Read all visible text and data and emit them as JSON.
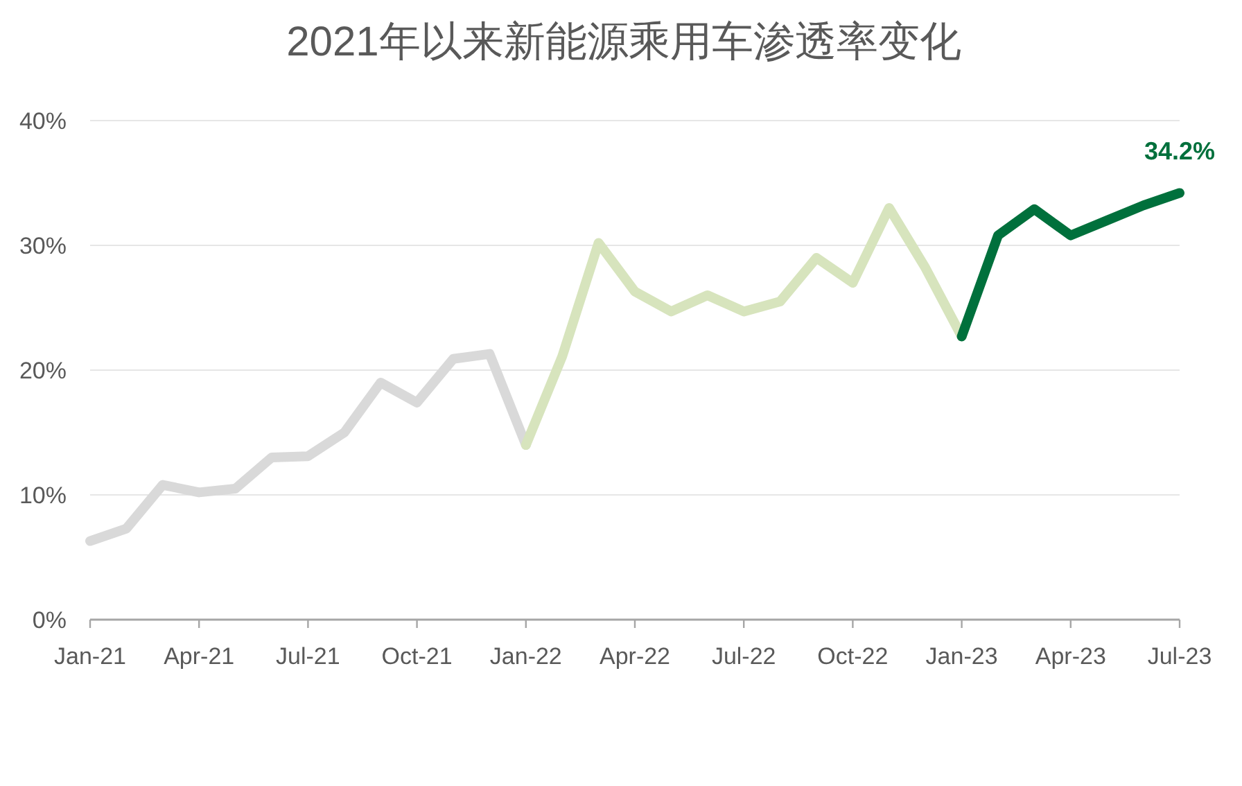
{
  "chart_data": {
    "type": "line",
    "title": "2021年以来新能源乘用车渗透率变化",
    "categories": [
      "Jan-21",
      null,
      null,
      "Apr-21",
      null,
      null,
      "Jul-21",
      null,
      null,
      "Oct-21",
      null,
      null,
      "Jan-22",
      null,
      null,
      "Apr-22",
      null,
      null,
      "Jul-22",
      null,
      null,
      "Oct-22",
      null,
      null,
      "Jan-23",
      null,
      null,
      "Apr-23",
      null,
      null,
      "Jul-23"
    ],
    "series": [
      {
        "color": "#d9d9d9",
        "values": [
          6.3,
          7.3,
          10.8,
          10.2,
          10.5,
          13.0,
          13.1,
          15.0,
          19.0,
          17.4,
          20.9,
          21.3,
          14.0,
          null,
          null,
          null,
          null,
          null,
          null,
          null,
          null,
          null,
          null,
          null,
          null,
          null,
          null,
          null,
          null,
          null,
          null
        ]
      },
      {
        "color": "#d7e4bd",
        "values": [
          null,
          null,
          null,
          null,
          null,
          null,
          null,
          null,
          null,
          null,
          null,
          null,
          14.0,
          21.1,
          30.2,
          26.3,
          24.7,
          26.0,
          24.7,
          25.5,
          29.0,
          27.0,
          33.0,
          28.2,
          22.7,
          null,
          null,
          null,
          null,
          null,
          null
        ]
      },
      {
        "color": "#00703c",
        "values": [
          null,
          null,
          null,
          null,
          null,
          null,
          null,
          null,
          null,
          null,
          null,
          null,
          null,
          null,
          null,
          null,
          null,
          null,
          null,
          null,
          null,
          null,
          null,
          null,
          22.7,
          30.8,
          32.9,
          30.8,
          32.0,
          33.2,
          34.2
        ],
        "value_labels": [
          null,
          null,
          null,
          null,
          null,
          null,
          null,
          null,
          null,
          null,
          null,
          null,
          null,
          null,
          null,
          null,
          null,
          null,
          null,
          null,
          null,
          null,
          null,
          null,
          null,
          null,
          null,
          null,
          null,
          null,
          "34.2%"
        ]
      }
    ],
    "ylim": [
      0,
      40
    ],
    "yticks": [
      {
        "value": 0,
        "label": "0%"
      },
      {
        "value": 10,
        "label": "10%"
      },
      {
        "value": 20,
        "label": "20%"
      },
      {
        "value": 30,
        "label": "30%"
      },
      {
        "value": 40,
        "label": "40%"
      }
    ],
    "grid": "y"
  }
}
